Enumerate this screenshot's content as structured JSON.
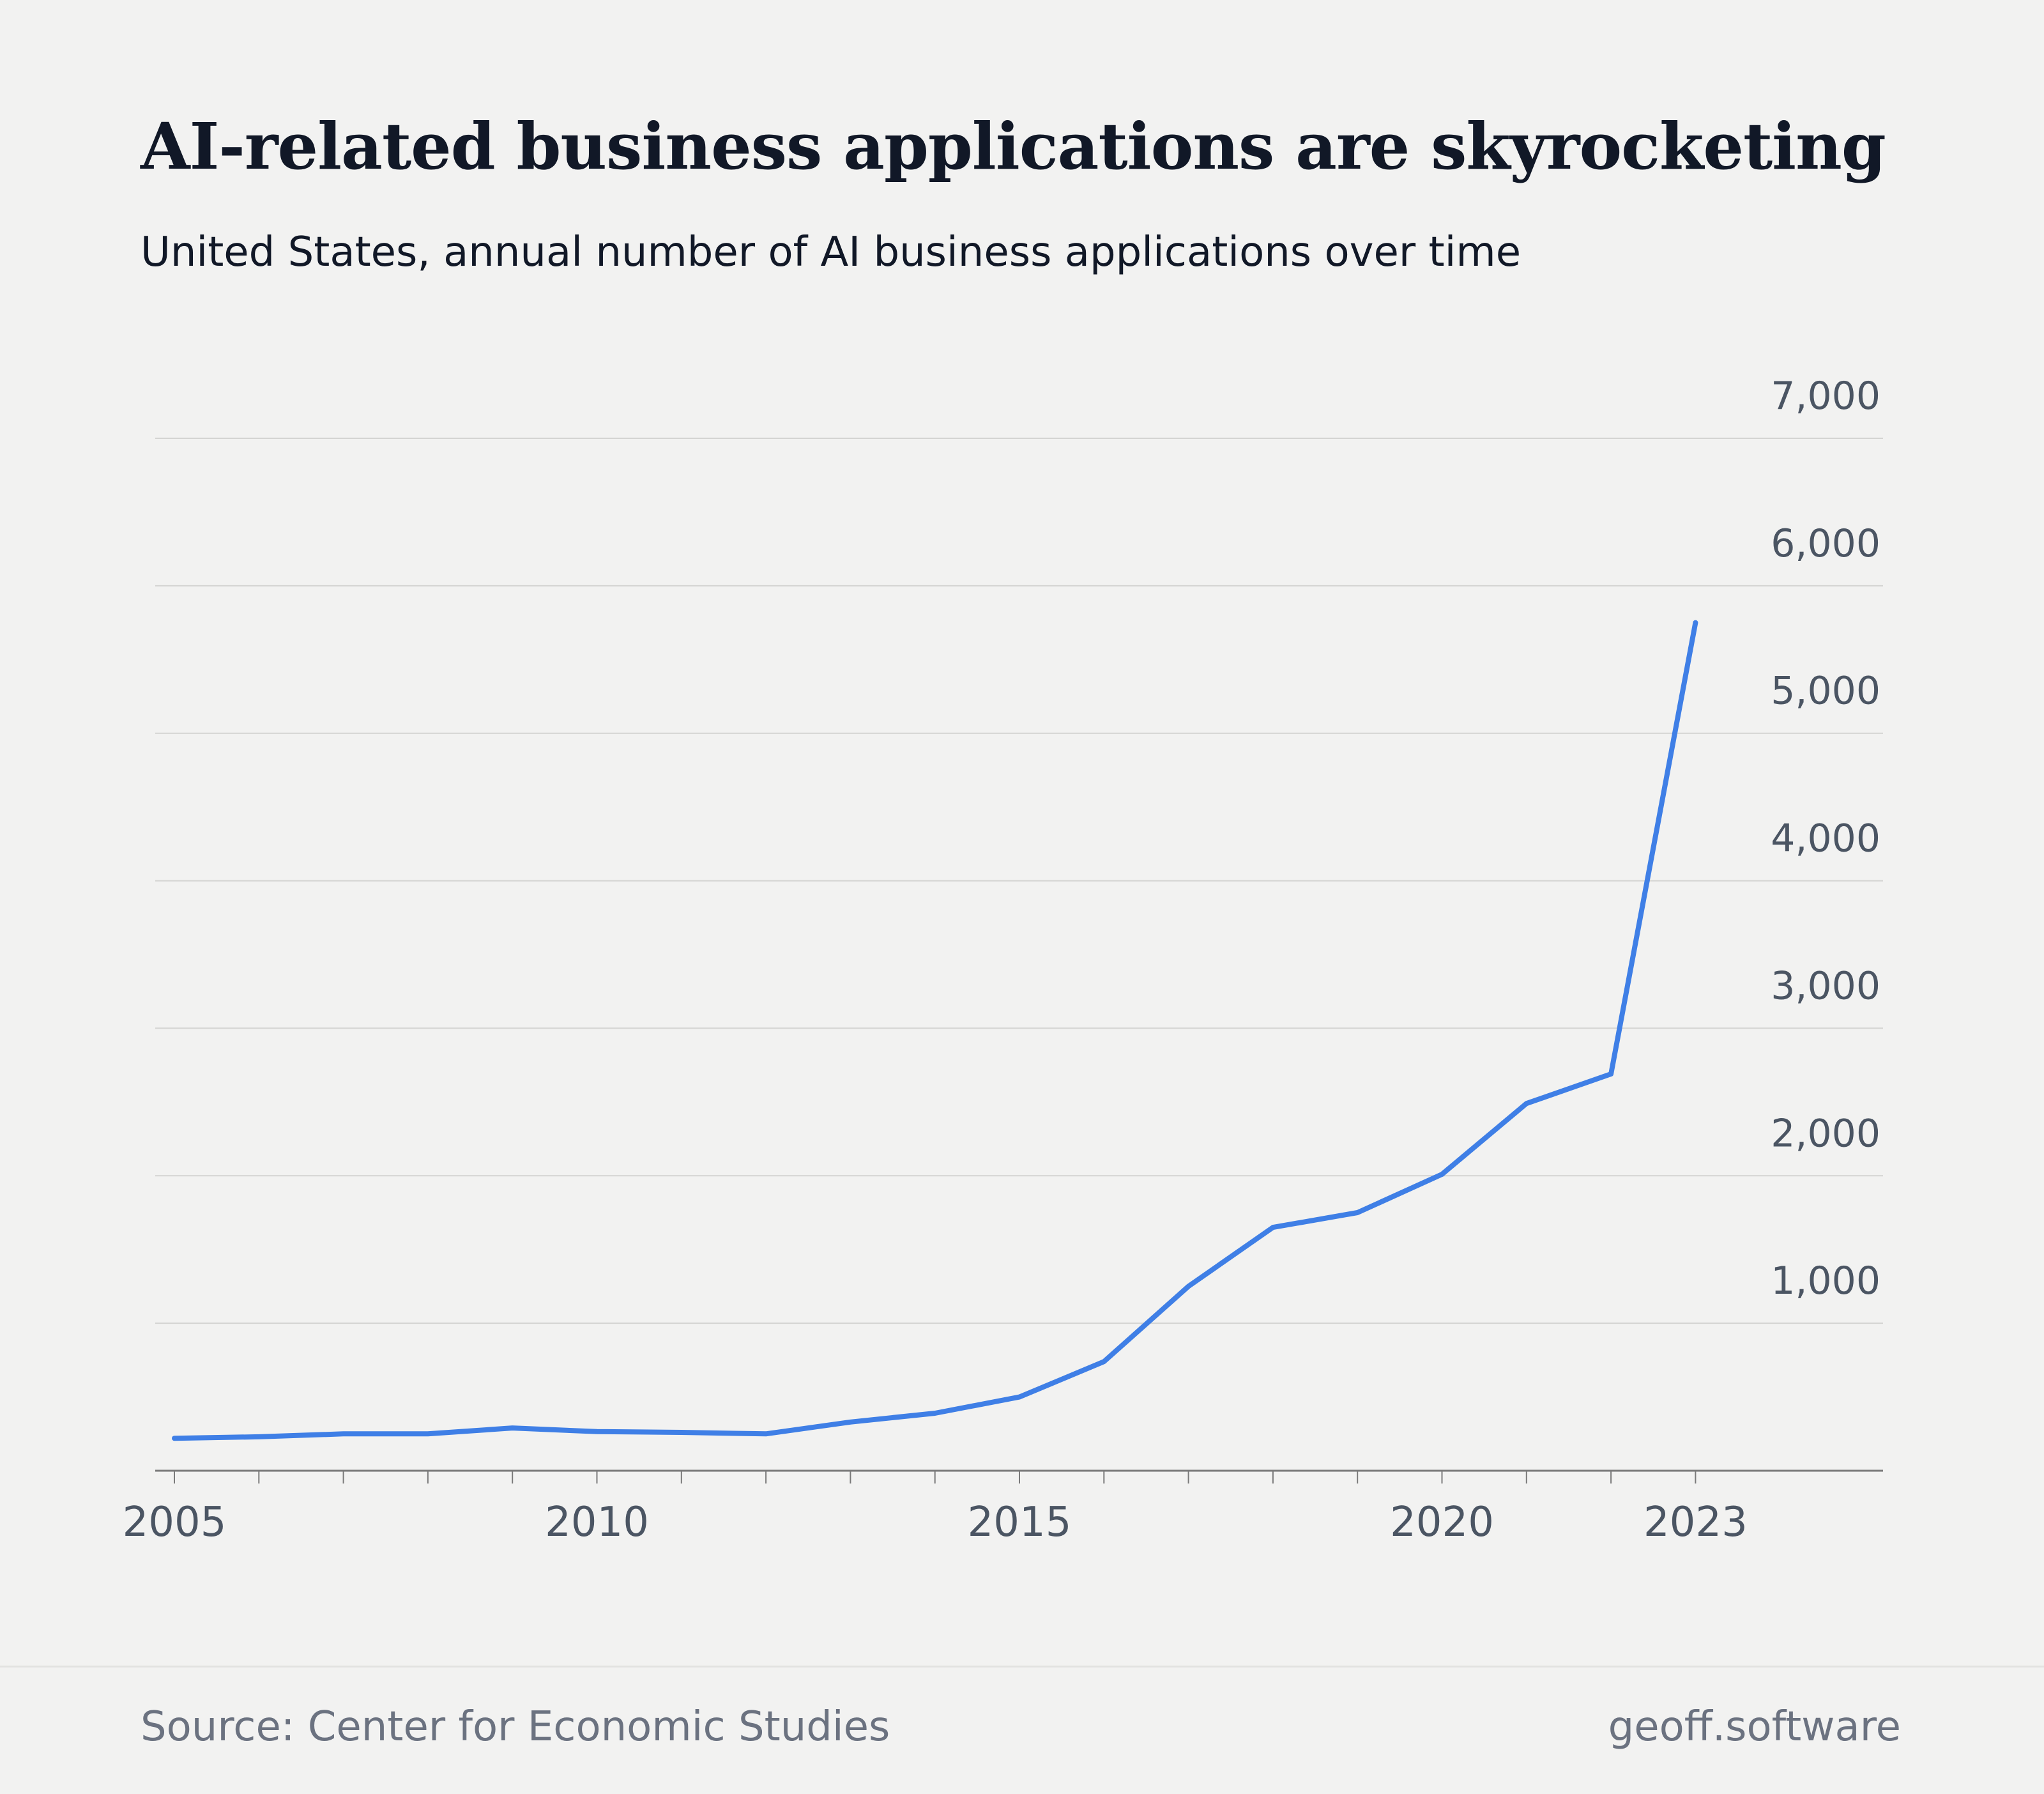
{
  "header": {
    "title": "AI-related business applications are skyrocketing",
    "subtitle": "United States, annual number of AI business applications over time"
  },
  "footer": {
    "source": "Source: Center for Economic Studies",
    "brand": "geoff.software"
  },
  "colors": {
    "line": "#3f7fe6",
    "grid": "#d4d4d2",
    "axis": "#7a7a7a",
    "tick_text": "#4b5563",
    "background": "#f2f2f1"
  },
  "chart_data": {
    "type": "line",
    "title": "AI-related business applications are skyrocketing",
    "subtitle": "United States, annual number of AI business applications over time",
    "xlabel": "",
    "ylabel": "",
    "x": [
      2005,
      2006,
      2007,
      2008,
      2009,
      2010,
      2011,
      2012,
      2013,
      2014,
      2015,
      2016,
      2017,
      2018,
      2019,
      2020,
      2021,
      2022,
      2023
    ],
    "series": [
      {
        "values": [
          220,
          230,
          250,
          250,
          290,
          265,
          260,
          250,
          330,
          390,
          500,
          740,
          1250,
          1650,
          1750,
          2010,
          2490,
          2690,
          5750
        ]
      }
    ],
    "xlim": [
      2005,
      2025
    ],
    "ylim": [
      0,
      7000
    ],
    "x_tick_labels": [
      "2005",
      "2010",
      "2015",
      "2020",
      "2023"
    ],
    "x_tick_values": [
      2005,
      2010,
      2015,
      2020,
      2023
    ],
    "y_tick_labels": [
      "1,000",
      "2,000",
      "3,000",
      "4,000",
      "5,000",
      "6,000",
      "7,000"
    ],
    "y_tick_values": [
      1000,
      2000,
      3000,
      4000,
      5000,
      6000,
      7000
    ],
    "grid": true,
    "y_axis_side": "right",
    "legend": "none"
  }
}
